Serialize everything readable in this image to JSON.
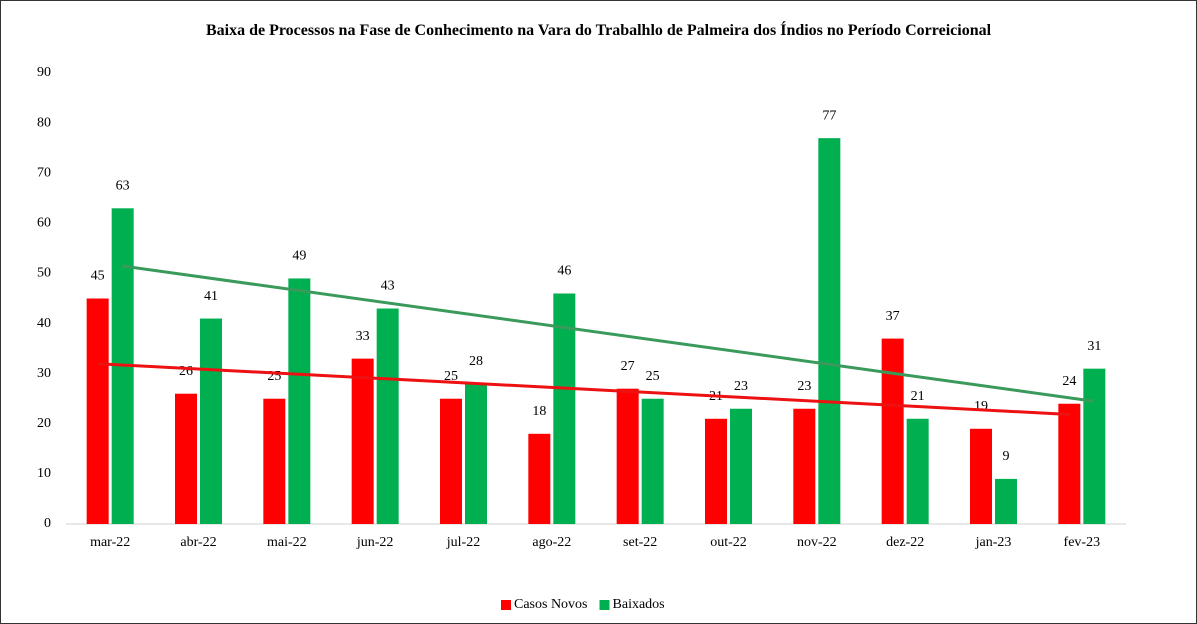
{
  "chart_data": {
    "type": "bar",
    "title": "Baixa de Processos na Fase de Conhecimento na Vara do Trabalhlo de Palmeira dos Índios no Período Correicional",
    "categories": [
      "mar-22",
      "abr-22",
      "mai-22",
      "jun-22",
      "jul-22",
      "ago-22",
      "set-22",
      "out-22",
      "nov-22",
      "dez-22",
      "jan-23",
      "fev-23"
    ],
    "series": [
      {
        "name": "Casos Novos",
        "color": "#ff0000",
        "trendline_color": "#ee1111",
        "values": [
          45,
          26,
          25,
          33,
          25,
          18,
          27,
          21,
          23,
          37,
          19,
          24
        ]
      },
      {
        "name": "Baixados",
        "color": "#00b050",
        "trendline_color": "#3a9a5b",
        "values": [
          63,
          41,
          49,
          43,
          28,
          46,
          25,
          23,
          77,
          21,
          9,
          31
        ]
      }
    ],
    "ylim": [
      0,
      90
    ],
    "yticks": [
      0,
      10,
      20,
      30,
      40,
      50,
      60,
      70,
      80,
      90
    ],
    "trendline": "linear",
    "grid": false,
    "legend": "bottom"
  }
}
